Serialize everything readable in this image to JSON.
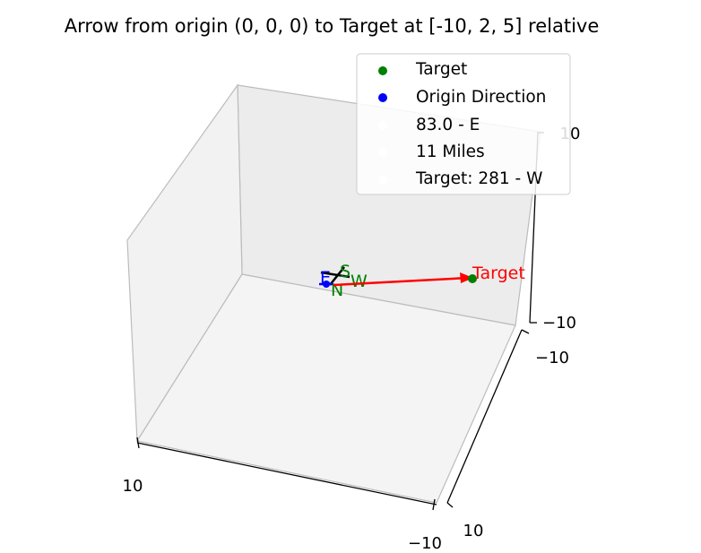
{
  "chart_data": {
    "type": "scatter",
    "projection": "3d",
    "title": "Arrow from origin (0, 0, 0) to Target at [-10, 2, 5] relative",
    "xlim": [
      -10,
      10
    ],
    "ylim": [
      -10,
      10
    ],
    "zlim": [
      -10,
      10
    ],
    "grid": false,
    "legend_position": "top-right",
    "tick_labels": {
      "x": [
        "10",
        "−10"
      ],
      "y": [
        "−10",
        "10"
      ],
      "z": [
        "−10",
        "10"
      ]
    },
    "origin": [
      0,
      0,
      0
    ],
    "target": [
      -10,
      2,
      5
    ],
    "series": [
      {
        "name": "Target",
        "color": "#008000",
        "marker": "circle",
        "points": [
          [
            -10,
            2,
            5
          ]
        ]
      },
      {
        "name": "Origin Direction",
        "color": "#0000ff",
        "marker": "circle",
        "points": [
          [
            0,
            0,
            0
          ]
        ]
      }
    ],
    "legend_extra": [
      {
        "name": "83.0 - E",
        "color": "#ffffff"
      },
      {
        "name": "11 Miles",
        "color": "#ffffff"
      },
      {
        "name": "Target: 281 - W",
        "color": "#ffffff"
      }
    ],
    "arrow": {
      "from": [
        0,
        0,
        0
      ],
      "to": [
        -10,
        2,
        5
      ],
      "color": "#ff0000"
    },
    "annotations": [
      {
        "text": "Target",
        "color": "#ff0000"
      },
      {
        "text": "S",
        "color": "#008000"
      },
      {
        "text": "W",
        "color": "#008000"
      },
      {
        "text": "E",
        "color": "#0000ff"
      },
      {
        "text": "N",
        "color": "#008000"
      }
    ]
  }
}
